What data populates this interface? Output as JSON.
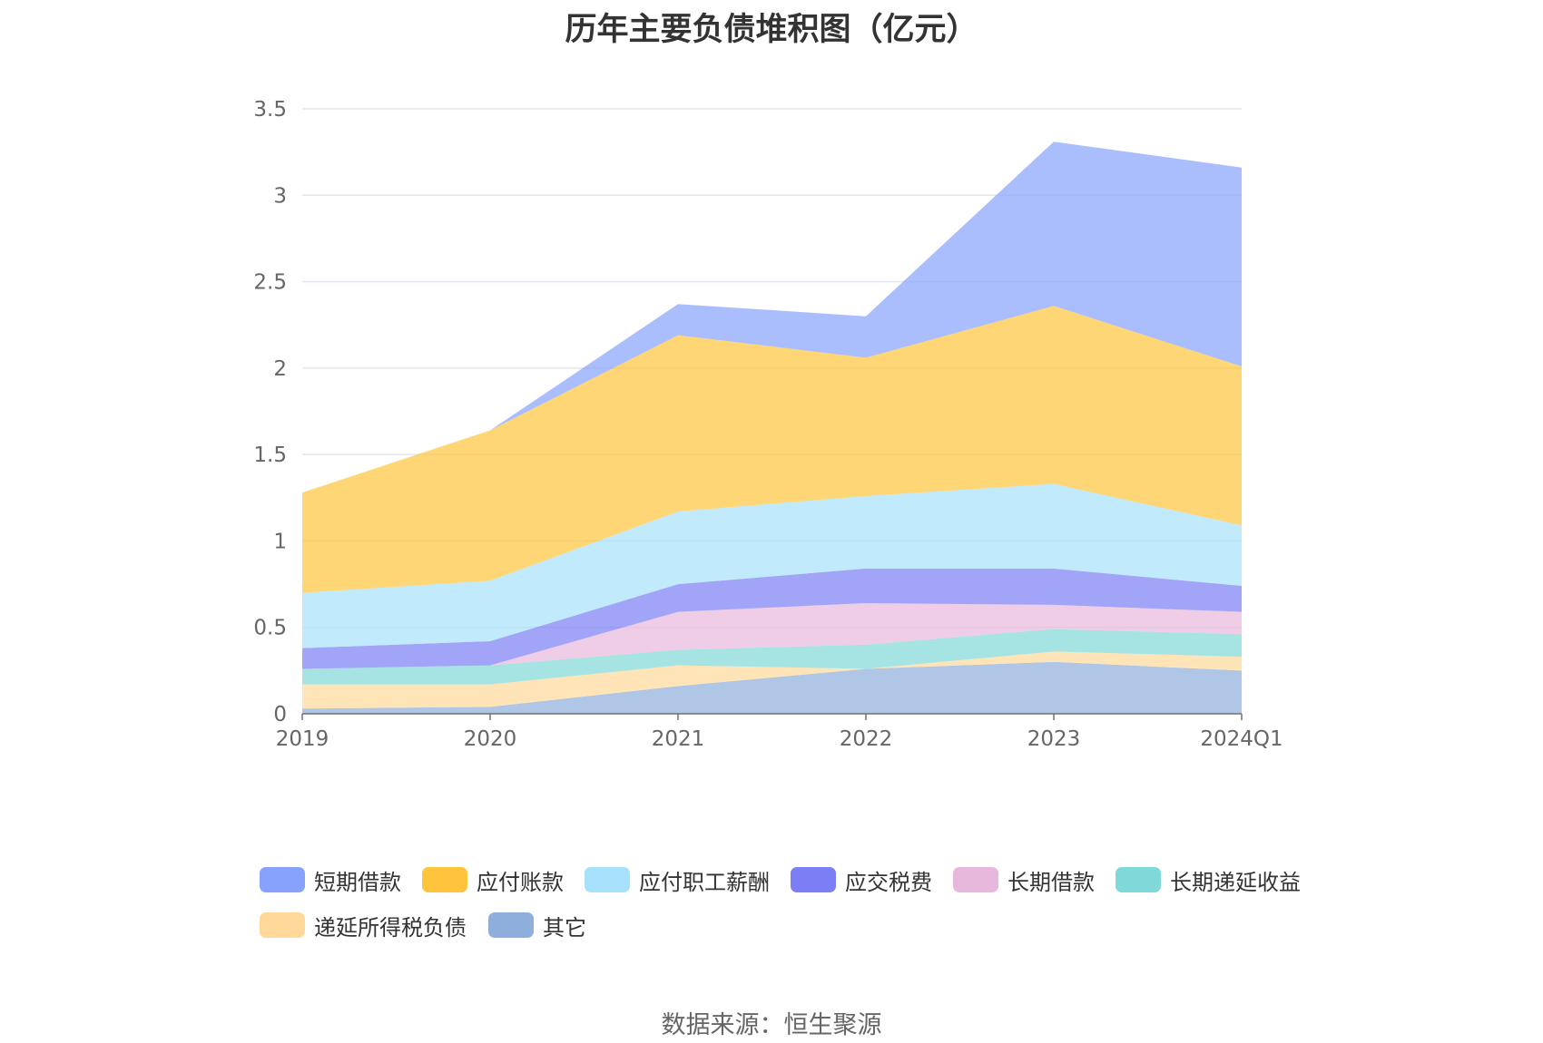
{
  "chart_data": {
    "type": "area",
    "stacked": true,
    "title": "历年主要负债堆积图（亿元）",
    "categories": [
      "2019",
      "2020",
      "2021",
      "2022",
      "2023",
      "2024Q1"
    ],
    "ylim": [
      0,
      3.5
    ],
    "yticks": [
      "0",
      "0.5",
      "1",
      "1.5",
      "2",
      "2.5",
      "3",
      "3.5"
    ],
    "grid": true,
    "legend_position": "bottom",
    "series": [
      {
        "name": "其它",
        "color": "#8eaedc",
        "values": [
          0.03,
          0.04,
          0.16,
          0.26,
          0.3,
          0.25
        ]
      },
      {
        "name": "递延所得税负债",
        "color": "#ffd89a",
        "values": [
          0.14,
          0.13,
          0.12,
          0.0,
          0.06,
          0.08
        ]
      },
      {
        "name": "长期递延收益",
        "color": "#80d8d8",
        "values": [
          0.09,
          0.11,
          0.09,
          0.14,
          0.13,
          0.13
        ]
      },
      {
        "name": "长期借款",
        "color": "#e8b8dc",
        "values": [
          0.0,
          0.0,
          0.22,
          0.24,
          0.14,
          0.13
        ]
      },
      {
        "name": "应交税费",
        "color": "#7b7ef5",
        "values": [
          0.12,
          0.14,
          0.16,
          0.2,
          0.21,
          0.15
        ]
      },
      {
        "name": "应付职工薪酬",
        "color": "#a7e1fb",
        "values": [
          0.32,
          0.35,
          0.42,
          0.42,
          0.49,
          0.35
        ]
      },
      {
        "name": "应付账款",
        "color": "#ffc43c",
        "values": [
          0.58,
          0.87,
          1.02,
          0.8,
          1.03,
          0.92
        ]
      },
      {
        "name": "短期借款",
        "color": "#86a2fc",
        "values": [
          0.0,
          0.0,
          0.18,
          0.24,
          0.95,
          1.15
        ]
      }
    ]
  },
  "legend_order": [
    "短期借款",
    "应付账款",
    "应付职工薪酬",
    "应交税费",
    "长期借款",
    "长期递延收益",
    "递延所得税负债",
    "其它"
  ],
  "source": "数据来源：恒生聚源"
}
